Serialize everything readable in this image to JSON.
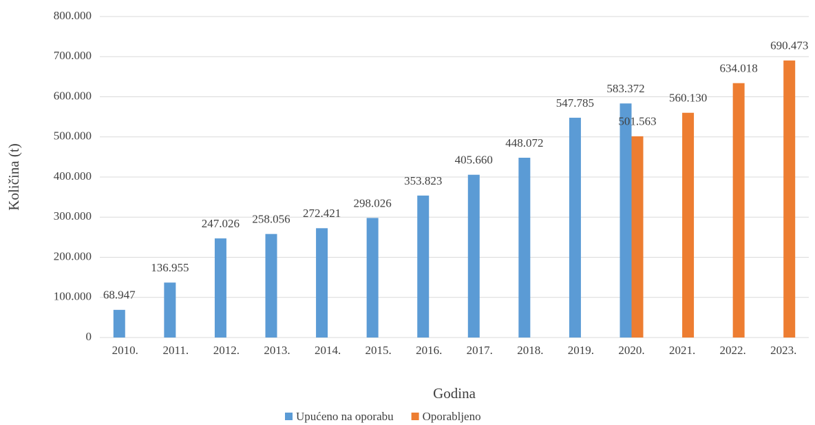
{
  "chart_data": {
    "type": "bar",
    "x_label": "Godina",
    "y_label": "Količina (t)",
    "categories": [
      "2010.",
      "2011.",
      "2012.",
      "2013.",
      "2014.",
      "2015.",
      "2016.",
      "2017.",
      "2018.",
      "2019.",
      "2020.",
      "2021.",
      "2022.",
      "2023."
    ],
    "series": [
      {
        "name": "Upućeno na oporabu",
        "color": "#5b9bd5",
        "values": [
          68947,
          136955,
          247026,
          258056,
          272421,
          298026,
          353823,
          405660,
          448072,
          547785,
          583372,
          null,
          null,
          null
        ],
        "value_labels": [
          "68.947",
          "136.955",
          "247.026",
          "258.056",
          "272.421",
          "298.026",
          "353.823",
          "405.660",
          "448.072",
          "547.785",
          "583.372",
          null,
          null,
          null
        ]
      },
      {
        "name": "Oporabljeno",
        "color": "#ed7d31",
        "values": [
          null,
          null,
          null,
          null,
          null,
          null,
          null,
          null,
          null,
          null,
          501563,
          560130,
          634018,
          690473
        ],
        "value_labels": [
          null,
          null,
          null,
          null,
          null,
          null,
          null,
          null,
          null,
          null,
          "501.563",
          "560.130",
          "634.018",
          "690.473"
        ]
      }
    ],
    "ylim": [
      0,
      800000
    ],
    "yticks": [
      0,
      {
        "value": 100000,
        "label": "100.000"
      },
      {
        "value": 200000,
        "label": "200.000"
      },
      {
        "value": 300000,
        "label": "300.000"
      },
      {
        "value": 400000,
        "label": "400.000"
      },
      {
        "value": 500000,
        "label": "500.000"
      },
      {
        "value": 600000,
        "label": "600.000"
      },
      {
        "value": 700000,
        "label": "700.000"
      },
      {
        "value": 800000,
        "label": "800.000"
      }
    ],
    "grid": true,
    "legend": "bottom"
  }
}
